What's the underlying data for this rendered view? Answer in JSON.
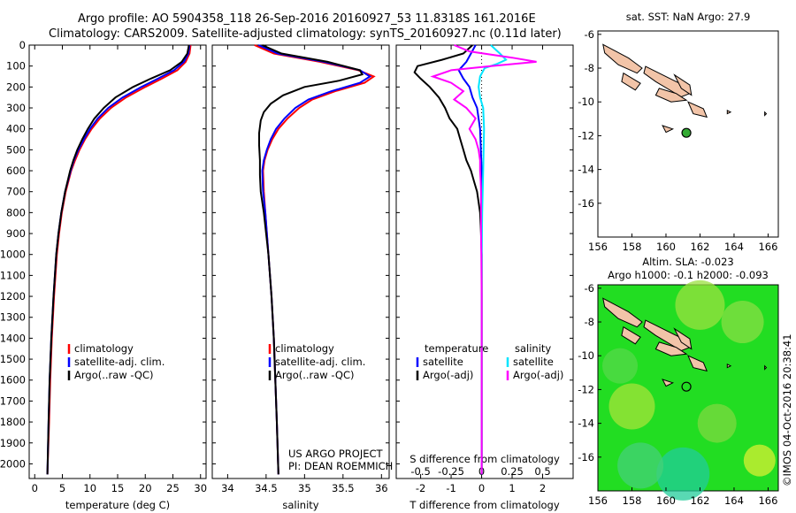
{
  "titles": {
    "line1": "Argo profile: AO 5904358_118 26-Sep-2016 20160927_53 11.8318S 161.2016E",
    "line2": "Climatology: CARS2009. Satellite-adjusted climatology: synTS_20160927.nc (0.11d later)"
  },
  "colors": {
    "clim": "#ff0000",
    "sat": "#0000ff",
    "argo": "#000000",
    "sat_sal": "#00e5ff",
    "argo_sal": "#ff00ff",
    "land": "#f2c4a8",
    "ocean_green": "#22dd22",
    "marker": "#33aa33"
  },
  "chart_data": [
    {
      "type": "line",
      "name": "temperature-profile",
      "xlabel": "temperature (deg C)",
      "xlim": [
        -1,
        31
      ],
      "ylim": [
        0,
        2070
      ],
      "xticks": [
        0,
        5,
        10,
        15,
        20,
        25,
        30
      ],
      "yticks": [
        0,
        100,
        200,
        300,
        400,
        500,
        600,
        700,
        800,
        900,
        1000,
        1100,
        1200,
        1300,
        1400,
        1500,
        1600,
        1700,
        1800,
        1900,
        2000
      ],
      "legend": [
        "climatology",
        "satellite-adj. clim.",
        "Argo(..raw -QC)"
      ],
      "series": [
        {
          "key": "clim",
          "depth": [
            0,
            40,
            80,
            120,
            160,
            200,
            250,
            300,
            350,
            400,
            450,
            500,
            550,
            600,
            700,
            800,
            900,
            1000,
            1200,
            1400,
            1600,
            1800,
            2050
          ],
          "values": [
            28.2,
            28.0,
            27.3,
            25.8,
            23.0,
            20.0,
            16.5,
            13.8,
            11.8,
            10.3,
            9.1,
            8.1,
            7.3,
            6.6,
            5.6,
            4.9,
            4.4,
            4.0,
            3.5,
            3.1,
            2.8,
            2.6,
            2.3
          ]
        },
        {
          "key": "sat",
          "depth": [
            0,
            40,
            80,
            120,
            160,
            200,
            250,
            300,
            350,
            400,
            450,
            500,
            550,
            600,
            700,
            800,
            900,
            1000,
            1200,
            1400,
            1600,
            1800,
            2050
          ],
          "values": [
            28.0,
            27.8,
            27.0,
            25.2,
            22.3,
            19.3,
            15.9,
            13.3,
            11.4,
            10.0,
            8.9,
            7.9,
            7.1,
            6.5,
            5.5,
            4.8,
            4.3,
            3.9,
            3.4,
            3.0,
            2.7,
            2.5,
            2.3
          ]
        },
        {
          "key": "argo",
          "depth": [
            0,
            40,
            80,
            120,
            160,
            200,
            250,
            300,
            350,
            400,
            450,
            500,
            550,
            600,
            700,
            800,
            900,
            1000,
            1200,
            1400,
            1600,
            1800,
            2050
          ],
          "values": [
            27.9,
            27.6,
            26.6,
            24.5,
            21.0,
            17.8,
            14.6,
            12.5,
            10.8,
            9.6,
            8.6,
            7.7,
            7.0,
            6.4,
            5.5,
            4.8,
            4.3,
            3.9,
            3.4,
            3.0,
            2.7,
            2.5,
            2.3
          ]
        }
      ]
    },
    {
      "type": "line",
      "name": "salinity-profile",
      "xlabel": "salinity",
      "xlim": [
        33.8,
        36.1
      ],
      "ylim": [
        0,
        2070
      ],
      "xticks": [
        34,
        34.5,
        35,
        35.5,
        36
      ],
      "legend": [
        "climatology",
        "satellite-adj. clim.",
        "Argo(..raw -QC)"
      ],
      "annotations": [
        "US ARGO PROJECT",
        "PI: DEAN ROEMMICH"
      ],
      "series": [
        {
          "key": "clim",
          "depth": [
            0,
            40,
            80,
            120,
            150,
            180,
            220,
            260,
            300,
            350,
            400,
            450,
            500,
            550,
            600,
            700,
            800,
            1000,
            1200,
            1400,
            1600,
            1800,
            2050
          ],
          "values": [
            34.35,
            34.6,
            35.2,
            35.7,
            35.9,
            35.78,
            35.4,
            35.1,
            34.93,
            34.78,
            34.66,
            34.58,
            34.52,
            34.48,
            34.46,
            34.47,
            34.49,
            34.53,
            34.57,
            34.6,
            34.62,
            34.64,
            34.66
          ]
        },
        {
          "key": "sat",
          "depth": [
            0,
            40,
            80,
            120,
            150,
            180,
            220,
            260,
            300,
            350,
            400,
            450,
            500,
            550,
            600,
            700,
            800,
            1000,
            1200,
            1400,
            1600,
            1800,
            2050
          ],
          "values": [
            34.4,
            34.65,
            35.25,
            35.72,
            35.85,
            35.72,
            35.35,
            35.05,
            34.88,
            34.74,
            34.63,
            34.56,
            34.51,
            34.47,
            34.45,
            34.46,
            34.49,
            34.53,
            34.57,
            34.6,
            34.62,
            34.64,
            34.66
          ]
        },
        {
          "key": "argo",
          "depth": [
            0,
            40,
            80,
            120,
            140,
            170,
            200,
            240,
            280,
            320,
            360,
            420,
            480,
            550,
            620,
            700,
            800,
            1000,
            1200,
            1400,
            1600,
            1800,
            2050
          ],
          "values": [
            34.45,
            34.7,
            35.3,
            35.72,
            35.75,
            35.45,
            35.0,
            34.72,
            34.56,
            34.47,
            34.43,
            34.41,
            34.41,
            34.42,
            34.42,
            34.43,
            34.47,
            34.53,
            34.57,
            34.6,
            34.62,
            34.64,
            34.66
          ]
        }
      ]
    },
    {
      "type": "line",
      "name": "difference-profile",
      "xlabel": "T difference from climatology",
      "xlabel_top": "S difference from climatology",
      "xlim": [
        -2.8,
        3.0
      ],
      "ylim": [
        0,
        2070
      ],
      "xticks": [
        -2,
        -1,
        0,
        1,
        2
      ],
      "xticks_top": [
        "-0.5",
        "-0.25",
        "0",
        "0.25",
        "0.5"
      ],
      "legend_left_title": "temperature",
      "legend_right_title": "salinity",
      "legend": [
        "satellite",
        "Argo(-adj)",
        "satellite",
        "Argo(-adj)"
      ],
      "series": [
        {
          "key": "sat_t",
          "depth": [
            0,
            40,
            80,
            120,
            160,
            200,
            250,
            300,
            400,
            600,
            800,
            1000,
            1500,
            2050
          ],
          "values": [
            -0.2,
            -0.35,
            -0.5,
            -0.75,
            -0.6,
            -0.4,
            -0.3,
            -0.15,
            -0.05,
            0,
            0,
            0,
            0,
            0
          ]
        },
        {
          "key": "argo_t",
          "depth": [
            0,
            40,
            70,
            100,
            130,
            160,
            200,
            250,
            300,
            350,
            400,
            450,
            500,
            550,
            600,
            650,
            700,
            750,
            800,
            900,
            1000,
            1200,
            1500,
            2050
          ],
          "values": [
            -0.3,
            -0.6,
            -1.3,
            -2.1,
            -2.2,
            -2.0,
            -1.7,
            -1.4,
            -1.2,
            -1.05,
            -0.8,
            -0.7,
            -0.6,
            -0.5,
            -0.35,
            -0.25,
            -0.15,
            -0.1,
            -0.05,
            -0.02,
            0,
            0,
            0,
            0
          ]
        },
        {
          "key": "sat_s",
          "depth": [
            0,
            40,
            70,
            90,
            110,
            150,
            200,
            250,
            300,
            400,
            600,
            800,
            1000,
            1500,
            2050
          ],
          "values": [
            0.3,
            0.6,
            0.8,
            0.5,
            0.1,
            -0.05,
            -0.1,
            -0.05,
            0.05,
            0.08,
            0.05,
            0.02,
            0,
            0,
            0
          ]
        },
        {
          "key": "argo_s",
          "depth": [
            0,
            30,
            60,
            80,
            100,
            120,
            150,
            180,
            220,
            260,
            300,
            350,
            400,
            450,
            500,
            550,
            600,
            650,
            700,
            800,
            900,
            1000,
            1200,
            1500,
            2050
          ],
          "values": [
            -0.9,
            -0.4,
            1.0,
            1.8,
            0.3,
            -1.0,
            -1.6,
            -1.0,
            -0.6,
            -0.9,
            -0.5,
            -0.2,
            -0.4,
            -0.2,
            -0.1,
            -0.05,
            -0.05,
            -0.03,
            -0.02,
            -0.02,
            -0.02,
            -0.01,
            0,
            0,
            0
          ]
        }
      ]
    },
    {
      "type": "scatter",
      "name": "sst-map",
      "title": "sat. SST: NaN Argo: 27.9",
      "xlim": [
        156,
        166.6
      ],
      "ylim": [
        -18,
        -5.8
      ],
      "xticks": [
        156,
        158,
        160,
        162,
        164,
        166
      ],
      "yticks": [
        -6,
        -8,
        -10,
        -12,
        -14,
        -16
      ],
      "points": [
        {
          "lon": 161.2,
          "lat": -11.83
        }
      ]
    },
    {
      "type": "heatmap",
      "name": "sla-map",
      "title": "Altim. SLA: -0.023",
      "subtitle": "Argo h1000: -0.1 h2000: -0.093",
      "xlim": [
        156,
        166.6
      ],
      "ylim": [
        -18,
        -5.8
      ],
      "xticks": [
        156,
        158,
        160,
        162,
        164,
        166
      ],
      "yticks": [
        -6,
        -8,
        -10,
        -12,
        -14,
        -16
      ],
      "points": [
        {
          "lon": 161.2,
          "lat": -11.83
        }
      ]
    }
  ],
  "credit": "©IMOS 04-Oct-2016 20:38:41"
}
